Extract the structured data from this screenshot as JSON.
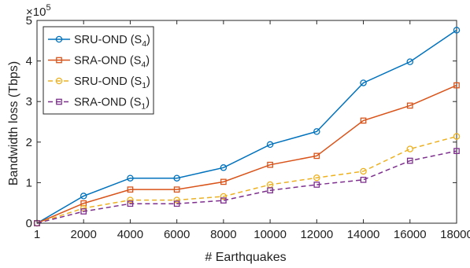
{
  "chart_data": {
    "type": "line",
    "x": [
      1,
      2000,
      4000,
      6000,
      8000,
      10000,
      12000,
      14000,
      16000,
      18000
    ],
    "x_tick_labels": [
      "1",
      "2000",
      "4000",
      "6000",
      "8000",
      "10000",
      "12000",
      "14000",
      "16000",
      "18000"
    ],
    "y_tick_labels": [
      "0",
      "1",
      "2",
      "3",
      "4",
      "5"
    ],
    "y_exponent_label": "×10",
    "y_exponent_power": "5",
    "xlabel": "# Earthquakes",
    "ylabel": "Bandwidth loss (Tbps)",
    "xlim": [
      1,
      18000
    ],
    "ylim": [
      0,
      500000
    ],
    "grid": false,
    "legend_position": "top-left",
    "series": [
      {
        "name": "SRU-OND (S4)",
        "legend_main": "SRU-OND (S",
        "legend_sub": "4",
        "legend_end": ")",
        "color": "#0072BD",
        "marker": "circle",
        "dash": "solid",
        "values": [
          0,
          67000,
          111000,
          111000,
          137000,
          194000,
          226000,
          346000,
          398000,
          476000
        ]
      },
      {
        "name": "SRA-OND (S4)",
        "legend_main": "SRA-OND (S",
        "legend_sub": "4",
        "legend_end": ")",
        "color": "#D95319",
        "marker": "square",
        "dash": "solid",
        "values": [
          0,
          49000,
          83000,
          83000,
          102000,
          144000,
          166000,
          253000,
          290000,
          340000
        ]
      },
      {
        "name": "SRU-OND (S1)",
        "legend_main": "SRU-OND (S",
        "legend_sub": "1",
        "legend_end": ")",
        "color": "#EDB120",
        "marker": "circle",
        "dash": "dashed",
        "values": [
          0,
          37000,
          57000,
          57000,
          66000,
          95000,
          112000,
          128000,
          183000,
          214000
        ]
      },
      {
        "name": "SRA-OND (S1)",
        "legend_main": "SRA-OND (S",
        "legend_sub": "1",
        "legend_end": ")",
        "color": "#7E2F8E",
        "marker": "square",
        "dash": "dashed",
        "values": [
          0,
          29000,
          48000,
          48000,
          56000,
          81000,
          95000,
          107000,
          154000,
          178000
        ]
      }
    ]
  }
}
